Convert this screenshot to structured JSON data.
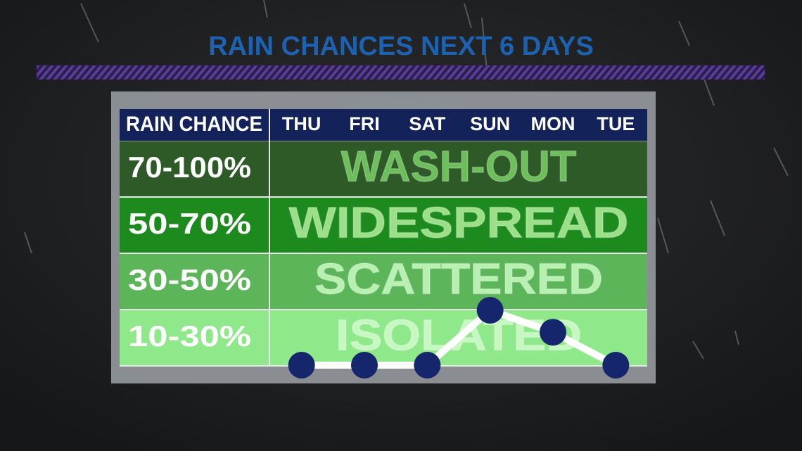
{
  "chart_data": {
    "type": "line",
    "title": "RAIN CHANCES NEXT 6 DAYS",
    "row_header": "RAIN CHANCE",
    "categories": [
      "THU",
      "FRI",
      "SAT",
      "SUN",
      "MON",
      "TUE"
    ],
    "bands": [
      {
        "label": "70-100%",
        "range": [
          70,
          100
        ],
        "text": "WASH-OUT",
        "color": "#2d5a27",
        "text_color": "#6cbf5a"
      },
      {
        "label": "50-70%",
        "range": [
          50,
          70
        ],
        "text": "WIDESPREAD",
        "color": "#1d8a1d",
        "text_color": "#9be088"
      },
      {
        "label": "30-50%",
        "range": [
          30,
          50
        ],
        "text": "SCATTERED",
        "color": "#5db55a",
        "text_color": "#b8f0b2"
      },
      {
        "label": "10-30%",
        "range": [
          10,
          30
        ],
        "text": "ISOLATED",
        "color": "#8fe98a",
        "text_color": "#c8f8c2"
      }
    ],
    "values": [
      10,
      10,
      10,
      30,
      22,
      10
    ],
    "line_color": "#ffffff",
    "marker_color": "#16266c"
  }
}
